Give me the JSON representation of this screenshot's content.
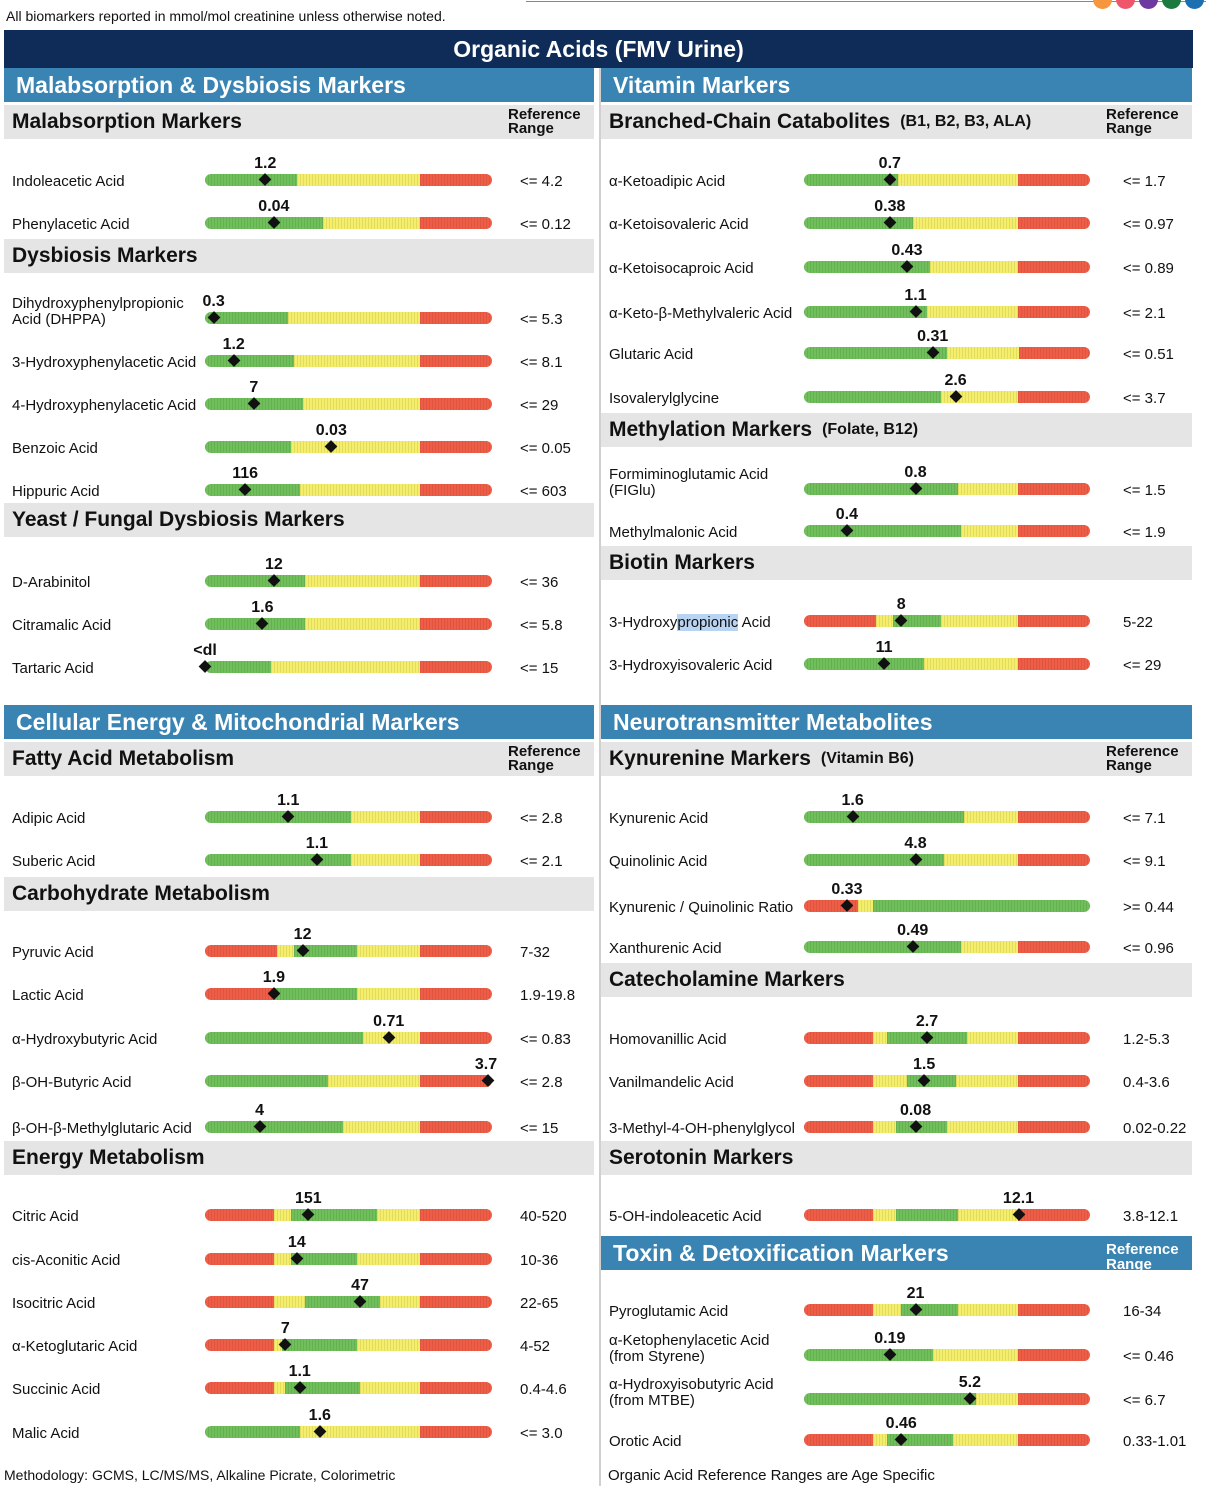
{
  "header": {
    "note": "All biomarkers reported in mmol/mol creatinine unless otherwise noted.",
    "title": "Organic Acids (FMV Urine)",
    "dot_colors": [
      "#f6963f",
      "#f0566b",
      "#6f3aa0",
      "#1c7a3e",
      "#1d6fb0"
    ]
  },
  "reference_heading": "Reference Range",
  "sections": [
    {
      "title": "Malabsorption & Dysbiosis Markers"
    },
    {
      "title": "Vitamin Markers"
    },
    {
      "title": "Cellular Energy & Mitochondrial Markers"
    },
    {
      "title": "Neurotransmitter Metabolites"
    },
    {
      "title": "Toxin & Detoxification Markers"
    }
  ],
  "subsections": [
    {
      "title": "Malabsorption Markers",
      "note": ""
    },
    {
      "title": "Dysbiosis Markers",
      "note": ""
    },
    {
      "title": "Yeast / Fungal Dysbiosis Markers",
      "note": ""
    },
    {
      "title": "Branched-Chain Catabolites",
      "note": "(B1, B2, B3, ALA)"
    },
    {
      "title": "Methylation Markers",
      "note": "(Folate, B12)"
    },
    {
      "title": "Biotin Markers",
      "note": ""
    },
    {
      "title": "Fatty Acid Metabolism",
      "note": ""
    },
    {
      "title": "Carbohydrate Metabolism",
      "note": ""
    },
    {
      "title": "Energy Metabolism",
      "note": ""
    },
    {
      "title": "Kynurenine Markers",
      "note": "(Vitamin B6)"
    },
    {
      "title": "Catecholamine Markers",
      "note": ""
    },
    {
      "title": "Serotonin Markers",
      "note": ""
    }
  ],
  "markers": [
    {
      "name": "Indoleacetic Acid",
      "value": "1.2",
      "range": "<= 4.2",
      "pos": 0.21,
      "zones": "g:0.32,y:0.43,r:0.25"
    },
    {
      "name": "Phenylacetic Acid",
      "value": "0.04",
      "range": "<= 0.12",
      "pos": 0.24,
      "zones": "g:0.41,y:0.34,r:0.25"
    },
    {
      "name": "Dihydroxyphenylpropionic Acid (DHPPA)",
      "value": "0.3",
      "range": "<= 5.3",
      "pos": 0.03,
      "zones": "g:0.29,y:0.46,r:0.25"
    },
    {
      "name": "3-Hydroxyphenylacetic Acid",
      "value": "1.2",
      "range": "<= 8.1",
      "pos": 0.1,
      "zones": "g:0.31,y:0.44,r:0.25"
    },
    {
      "name": "4-Hydroxyphenylacetic Acid",
      "value": "7",
      "range": "<= 29",
      "pos": 0.17,
      "zones": "g:0.34,y:0.41,r:0.25"
    },
    {
      "name": "Benzoic Acid",
      "value": "0.03",
      "range": "<= 0.05",
      "pos": 0.44,
      "zones": "g:0.30,y:0.45,r:0.25"
    },
    {
      "name": "Hippuric Acid",
      "value": "116",
      "range": "<= 603",
      "pos": 0.14,
      "zones": "g:0.33,y:0.42,r:0.25"
    },
    {
      "name": "D-Arabinitol",
      "value": "12",
      "range": "<= 36",
      "pos": 0.24,
      "zones": "g:0.35,y:0.40,r:0.25"
    },
    {
      "name": "Citramalic Acid",
      "value": "1.6",
      "range": "<= 5.8",
      "pos": 0.2,
      "zones": "g:0.35,y:0.40,r:0.25"
    },
    {
      "name": "Tartaric Acid",
      "value": "<dl",
      "range": "<= 15",
      "pos": 0.0,
      "zones": "g:0.23,y:0.52,r:0.25"
    },
    {
      "name": "α-Ketoadipic Acid",
      "value": "0.7",
      "range": "<= 1.7",
      "pos": 0.3,
      "zones": "g:0.33,y:0.42,r:0.25"
    },
    {
      "name": "α-Ketoisovaleric Acid",
      "value": "0.38",
      "range": "<= 0.97",
      "pos": 0.3,
      "zones": "g:0.38,y:0.37,r:0.25"
    },
    {
      "name": "α-Ketoisocaproic Acid",
      "value": "0.43",
      "range": "<= 0.89",
      "pos": 0.36,
      "zones": "g:0.44,y:0.31,r:0.25"
    },
    {
      "name": "α-Keto-β-Methylvaleric Acid",
      "value": "1.1",
      "range": "<= 2.1",
      "pos": 0.39,
      "zones": "g:0.43,y:0.32,r:0.25"
    },
    {
      "name": "Glutaric Acid",
      "value": "0.31",
      "range": "<= 0.51",
      "pos": 0.45,
      "zones": "g:0.50,y:0.25,r:0.25"
    },
    {
      "name": "Isovalerylglycine",
      "value": "2.6",
      "range": "<= 3.7",
      "pos": 0.53,
      "zones": "g:0.48,y:0.27,r:0.25"
    },
    {
      "name": "Formiminoglutamic Acid (FIGlu)",
      "value": "0.8",
      "range": "<= 1.5",
      "pos": 0.39,
      "zones": "g:0.54,y:0.21,r:0.25"
    },
    {
      "name": "Methylmalonic Acid",
      "value": "0.4",
      "range": "<= 1.9",
      "pos": 0.15,
      "zones": "g:0.55,y:0.20,r:0.25"
    },
    {
      "name": "3-Hydroxypropionic Acid",
      "value": "8",
      "range": "5-22",
      "pos": 0.34,
      "zones": "r:0.25,y:0.06,g:0.17,y:0.27,r:0.25"
    },
    {
      "name": "3-Hydroxyisovaleric Acid",
      "value": "11",
      "range": "<= 29",
      "pos": 0.28,
      "zones": "g:0.42,y:0.33,r:0.25"
    },
    {
      "name": "Adipic Acid",
      "value": "1.1",
      "range": "<= 2.8",
      "pos": 0.29,
      "zones": "g:0.51,y:0.24,r:0.25"
    },
    {
      "name": "Suberic Acid",
      "value": "1.1",
      "range": "<= 2.1",
      "pos": 0.39,
      "zones": "g:0.51,y:0.24,r:0.25"
    },
    {
      "name": "Pyruvic Acid",
      "value": "12",
      "range": "7-32",
      "pos": 0.34,
      "zones": "r:0.25,y:0.06,g:0.22,y:0.22,r:0.25"
    },
    {
      "name": "Lactic Acid",
      "value": "1.9",
      "range": "1.9-19.8",
      "pos": 0.24,
      "zones": "r:0.24,g:0.29,y:0.22,r:0.25"
    },
    {
      "name": "α-Hydroxybutyric Acid",
      "value": "0.71",
      "range": "<= 0.83",
      "pos": 0.64,
      "zones": "g:0.55,y:0.20,r:0.25"
    },
    {
      "name": "β-OH-Butyric Acid",
      "value": "3.7",
      "range": "<= 2.8",
      "pos": 0.99,
      "zones": "g:0.43,y:0.32,r:0.25"
    },
    {
      "name": "β-OH-β-Methylglutaric Acid",
      "value": "4",
      "range": "<= 15",
      "pos": 0.19,
      "zones": "g:0.48,y:0.27,r:0.25"
    },
    {
      "name": "Citric Acid",
      "value": "151",
      "range": "40-520",
      "pos": 0.36,
      "zones": "r:0.24,y:0.06,g:0.30,y:0.15,r:0.25"
    },
    {
      "name": "cis-Aconitic Acid",
      "value": "14",
      "range": "10-36",
      "pos": 0.32,
      "zones": "r:0.24,y:0.06,g:0.23,y:0.22,r:0.25"
    },
    {
      "name": "Isocitric Acid",
      "value": "47",
      "range": "22-65",
      "pos": 0.54,
      "zones": "r:0.24,y:0.11,g:0.26,y:0.14,r:0.25"
    },
    {
      "name": "α-Ketoglutaric Acid",
      "value": "7",
      "range": "4-52",
      "pos": 0.28,
      "zones": "r:0.24,y:0.03,g:0.26,y:0.22,r:0.25"
    },
    {
      "name": "Succinic Acid",
      "value": "1.1",
      "range": "0.4-4.6",
      "pos": 0.33,
      "zones": "r:0.24,y:0.04,g:0.26,y:0.21,r:0.25"
    },
    {
      "name": "Malic Acid",
      "value": "1.6",
      "range": "<= 3.0",
      "pos": 0.4,
      "zones": "g:0.33,y:0.42,r:0.25"
    },
    {
      "name": "Kynurenic Acid",
      "value": "1.6",
      "range": "<= 7.1",
      "pos": 0.17,
      "zones": "g:0.56,y:0.19,r:0.25"
    },
    {
      "name": "Quinolinic Acid",
      "value": "4.8",
      "range": "<= 9.1",
      "pos": 0.39,
      "zones": "g:0.49,y:0.26,r:0.25"
    },
    {
      "name": "Kynurenic / Quinolinic Ratio",
      "value": "0.33",
      "range": ">= 0.44",
      "pos": 0.15,
      "zones": "r:0.19,y:0.05,g:0.76"
    },
    {
      "name": "Xanthurenic Acid",
      "value": "0.49",
      "range": "<= 0.96",
      "pos": 0.38,
      "zones": "g:0.55,y:0.20,r:0.25"
    },
    {
      "name": "Homovanillic Acid",
      "value": "2.7",
      "range": "1.2-5.3",
      "pos": 0.43,
      "zones": "r:0.24,y:0.05,g:0.28,y:0.18,r:0.25"
    },
    {
      "name": "Vanilmandelic Acid",
      "value": "1.5",
      "range": "0.4-3.6",
      "pos": 0.42,
      "zones": "r:0.24,y:0.12,g:0.17,y:0.22,r:0.25"
    },
    {
      "name": "3-Methyl-4-OH-phenylglycol",
      "value": "0.08",
      "range": "0.02-0.22",
      "pos": 0.39,
      "zones": "r:0.24,y:0.08,g:0.18,y:0.25,r:0.25"
    },
    {
      "name": "5-OH-indoleacetic Acid",
      "value": "12.1",
      "range": "3.8-12.1",
      "pos": 0.75,
      "zones": "r:0.24,y:0.08,g:0.22,y:0.21,r:0.25"
    },
    {
      "name": "Pyroglutamic Acid",
      "value": "21",
      "range": "16-34",
      "pos": 0.39,
      "zones": "r:0.24,y:0.10,g:0.20,y:0.21,r:0.25"
    },
    {
      "name": "α-Ketophenylacetic Acid (from Styrene)",
      "value": "0.19",
      "range": "<= 0.46",
      "pos": 0.3,
      "zones": "g:0.45,y:0.30,r:0.25"
    },
    {
      "name": "α-Hydroxyisobutyric Acid (from MTBE)",
      "value": "5.2",
      "range": "<= 6.7",
      "pos": 0.58,
      "zones": "g:0.60,y:0.15,r:0.25"
    },
    {
      "name": "Orotic Acid",
      "value": "0.46",
      "range": "0.33-1.01",
      "pos": 0.34,
      "zones": "r:0.24,y:0.05,g:0.23,y:0.23,r:0.25"
    }
  ],
  "footer": {
    "left": "Methodology: GCMS, LC/MS/MS, Alkaline Picrate, Colorimetric",
    "right": "Organic Acid Reference Ranges are Age Specific"
  }
}
